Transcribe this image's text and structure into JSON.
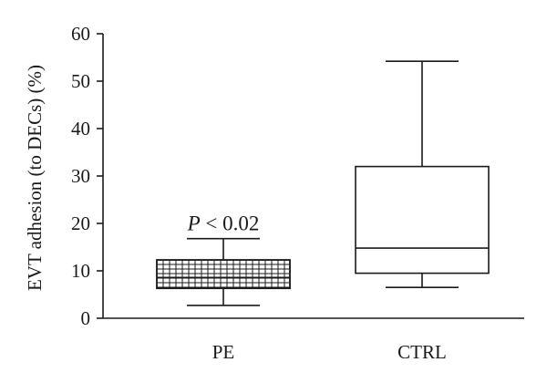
{
  "chart_data": {
    "type": "box",
    "ylabel": "EVT adhesion (to DECs) (%)",
    "xlabel": "",
    "ylim": [
      0,
      60
    ],
    "yticks": [
      0,
      10,
      20,
      30,
      40,
      50,
      60
    ],
    "grid": false,
    "categories": [
      "PE",
      "CTRL"
    ],
    "boxes": [
      {
        "category": "PE",
        "whisker_low": 2.7,
        "q1": 6.3,
        "median": 8.6,
        "q3": 12.3,
        "whisker_high": 16.8,
        "pattern": "grid-hatched",
        "annotation": {
          "italic": "P",
          "text": " < 0.02"
        }
      },
      {
        "category": "CTRL",
        "whisker_low": 6.5,
        "q1": 9.5,
        "median": 14.8,
        "q3": 32.0,
        "whisker_high": 54.2,
        "pattern": "none"
      }
    ]
  }
}
